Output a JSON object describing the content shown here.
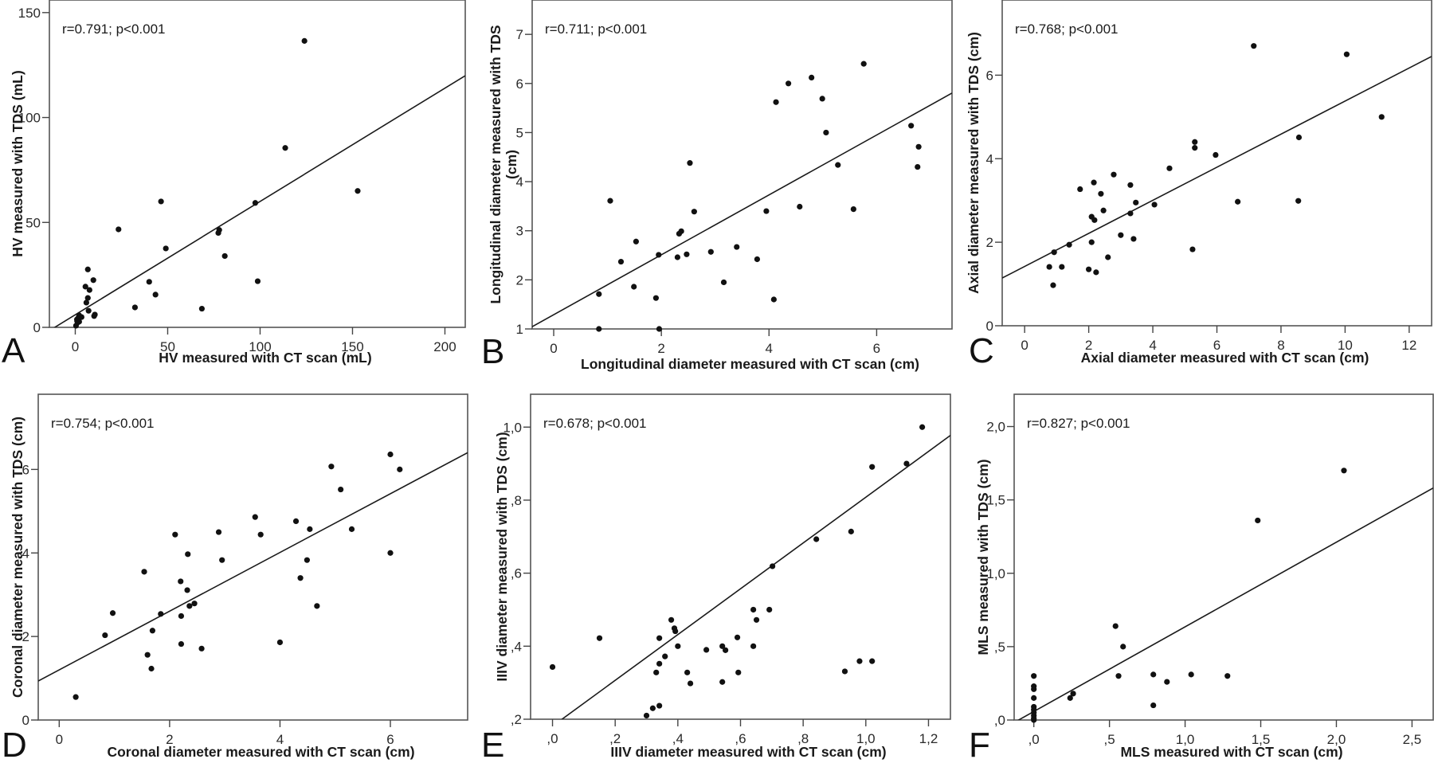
{
  "chart_data": [
    {
      "panel": "A",
      "type": "scatter",
      "stat": "r=0.791; p<0.001",
      "xlabel": "HV measured with CT scan (mL)",
      "ylabel": "HV measured with TDS (mL)",
      "xlim": [
        -14,
        211
      ],
      "ylim": [
        0,
        156
      ],
      "xticks": [
        0,
        50,
        100,
        150,
        200
      ],
      "xtick_labels": [
        "0",
        "50",
        "100",
        "150",
        "200"
      ],
      "yticks": [
        0,
        50,
        100,
        150
      ],
      "ytick_labels": [
        "0",
        "50",
        "100",
        "150"
      ],
      "fit": {
        "slope": 0.54,
        "intercept": 6.0
      },
      "points": [
        [
          124,
          136.5
        ],
        [
          113.6,
          85.5
        ],
        [
          152.8,
          65
        ],
        [
          97.4,
          59.3
        ],
        [
          46.4,
          60
        ],
        [
          98.7,
          22
        ],
        [
          23.4,
          46.7
        ],
        [
          49,
          37.6
        ],
        [
          77.9,
          46.4
        ],
        [
          77.4,
          45
        ],
        [
          80.9,
          34
        ],
        [
          40,
          21.7
        ],
        [
          43.4,
          15.6
        ],
        [
          32.3,
          9.5
        ],
        [
          68.5,
          8.9
        ],
        [
          6.8,
          27.6
        ],
        [
          9.8,
          22.5
        ],
        [
          5.5,
          19.4
        ],
        [
          7.7,
          17.8
        ],
        [
          6.8,
          14
        ],
        [
          6,
          11.8
        ],
        [
          7.2,
          7.9
        ],
        [
          10.6,
          6.1
        ],
        [
          10.2,
          5.4
        ],
        [
          2.1,
          5.7
        ],
        [
          3.4,
          4.9
        ],
        [
          1.7,
          4.6
        ],
        [
          0.9,
          3.8
        ],
        [
          1.3,
          2.3
        ],
        [
          2.1,
          2.7
        ],
        [
          0.4,
          0.8
        ],
        [
          1,
          3
        ]
      ]
    },
    {
      "panel": "B",
      "type": "scatter",
      "stat": "r=0.711; p<0.001",
      "xlabel": "Longitudinal diameter measured with CT scan (cm)",
      "ylabel": "Longitudinal diameter measured with TDS\n(cm)",
      "ylabel_lines": [
        "Longitudinal diameter measured with TDS",
        "(cm)"
      ],
      "xlim": [
        -0.4,
        7.4
      ],
      "ylim": [
        1,
        7.7
      ],
      "xticks": [
        0,
        2,
        4,
        6
      ],
      "xtick_labels": [
        "0",
        "2",
        "4",
        "6"
      ],
      "yticks": [
        1,
        2,
        3,
        4,
        5,
        6,
        7
      ],
      "ytick_labels": [
        "1",
        "2",
        "3",
        "4",
        "5",
        "6",
        "7"
      ],
      "fit": {
        "slope": 0.61,
        "intercept": 1.29
      },
      "points": [
        [
          1.05,
          3.61
        ],
        [
          0.84,
          1.71
        ],
        [
          0.84,
          1.0
        ],
        [
          1.25,
          2.37
        ],
        [
          1.53,
          2.78
        ],
        [
          1.49,
          1.86
        ],
        [
          1.9,
          1.63
        ],
        [
          1.95,
          2.51
        ],
        [
          1.96,
          1.0
        ],
        [
          2.3,
          2.46
        ],
        [
          2.33,
          2.94
        ],
        [
          2.37,
          2.99
        ],
        [
          2.47,
          2.52
        ],
        [
          2.53,
          4.38
        ],
        [
          2.61,
          3.39
        ],
        [
          2.92,
          2.57
        ],
        [
          3.16,
          1.95
        ],
        [
          3.4,
          2.67
        ],
        [
          3.78,
          2.42
        ],
        [
          3.95,
          3.4
        ],
        [
          4.09,
          1.6
        ],
        [
          4.13,
          5.62
        ],
        [
          4.36,
          6.0
        ],
        [
          4.57,
          3.49
        ],
        [
          4.79,
          6.12
        ],
        [
          4.99,
          5.69
        ],
        [
          5.06,
          5.0
        ],
        [
          5.28,
          4.34
        ],
        [
          5.57,
          3.44
        ],
        [
          5.76,
          6.4
        ],
        [
          6.64,
          5.14
        ],
        [
          6.78,
          4.71
        ],
        [
          6.76,
          4.3
        ]
      ]
    },
    {
      "panel": "C",
      "type": "scatter",
      "stat": "r=0.768; p<0.001",
      "xlabel": "Axial diameter measured with CT scan (cm)",
      "ylabel": "Axial diameter measured with TDS (cm)",
      "xlim": [
        -0.7,
        12.7
      ],
      "ylim": [
        0,
        7.8
      ],
      "xticks": [
        0,
        2,
        4,
        6,
        8,
        10,
        12
      ],
      "xtick_labels": [
        "0",
        "2",
        "4",
        "6",
        "8",
        "10",
        "12"
      ],
      "yticks": [
        0,
        2,
        4,
        6
      ],
      "ytick_labels": [
        "0",
        "2",
        "4",
        "6"
      ],
      "fit": {
        "slope": 0.396,
        "intercept": 1.42
      },
      "points": [
        [
          0.89,
          0.97
        ],
        [
          0.77,
          1.41
        ],
        [
          0.92,
          1.76
        ],
        [
          1.16,
          1.41
        ],
        [
          1.39,
          1.94
        ],
        [
          1.73,
          3.27
        ],
        [
          2.0,
          1.35
        ],
        [
          2.09,
          2.0
        ],
        [
          2.09,
          2.61
        ],
        [
          2.18,
          2.53
        ],
        [
          2.16,
          3.43
        ],
        [
          2.23,
          1.28
        ],
        [
          2.38,
          3.16
        ],
        [
          2.46,
          2.76
        ],
        [
          2.6,
          1.64
        ],
        [
          2.78,
          3.62
        ],
        [
          3.0,
          2.17
        ],
        [
          3.3,
          3.37
        ],
        [
          3.3,
          2.69
        ],
        [
          3.4,
          2.08
        ],
        [
          3.47,
          2.95
        ],
        [
          4.05,
          2.9
        ],
        [
          4.52,
          3.77
        ],
        [
          5.24,
          1.83
        ],
        [
          5.31,
          4.4
        ],
        [
          5.31,
          4.26
        ],
        [
          5.96,
          4.09
        ],
        [
          6.65,
          2.97
        ],
        [
          7.15,
          6.7
        ],
        [
          10.05,
          6.5
        ],
        [
          11.14,
          5.0
        ],
        [
          8.56,
          4.51
        ],
        [
          8.54,
          2.99
        ]
      ]
    },
    {
      "panel": "D",
      "type": "scatter",
      "stat": "r=0.754; p<0.001",
      "xlabel": "Coronal diameter measured with CT scan (cm)",
      "ylabel": "Coronal diameter measured with TDS (cm)",
      "xlim": [
        -0.38,
        7.4
      ],
      "ylim": [
        0,
        7.8
      ],
      "xticks": [
        0,
        2,
        4,
        6
      ],
      "xtick_labels": [
        "0",
        "2",
        "4",
        "6"
      ],
      "yticks": [
        0,
        2,
        4,
        6
      ],
      "ytick_labels": [
        "0",
        "2",
        "4",
        "6"
      ],
      "fit": {
        "slope": 0.703,
        "intercept": 1.2
      },
      "points": [
        [
          6.0,
          6.36
        ],
        [
          6.17,
          6.0
        ],
        [
          4.93,
          6.07
        ],
        [
          5.1,
          5.52
        ],
        [
          5.3,
          4.57
        ],
        [
          6.0,
          4.0
        ],
        [
          4.54,
          4.57
        ],
        [
          4.29,
          4.76
        ],
        [
          4.49,
          3.83
        ],
        [
          4.37,
          3.4
        ],
        [
          4.67,
          2.73
        ],
        [
          4.0,
          1.86
        ],
        [
          3.55,
          4.86
        ],
        [
          3.65,
          4.44
        ],
        [
          2.89,
          4.5
        ],
        [
          2.95,
          3.83
        ],
        [
          2.1,
          4.44
        ],
        [
          2.33,
          3.97
        ],
        [
          2.2,
          3.32
        ],
        [
          2.32,
          3.11
        ],
        [
          2.36,
          2.73
        ],
        [
          2.45,
          2.79
        ],
        [
          2.21,
          2.49
        ],
        [
          2.21,
          1.82
        ],
        [
          2.58,
          1.71
        ],
        [
          1.54,
          3.55
        ],
        [
          1.84,
          2.54
        ],
        [
          1.69,
          2.14
        ],
        [
          1.6,
          1.56
        ],
        [
          1.67,
          1.23
        ],
        [
          0.97,
          2.56
        ],
        [
          0.83,
          2.03
        ],
        [
          0.3,
          0.55
        ]
      ]
    },
    {
      "panel": "E",
      "type": "scatter",
      "stat": "r=0.678; p<0.001",
      "xlabel": "IIIV diameter measured with CT scan (cm)",
      "ylabel": "IIIV diameter measured with TDS (cm)",
      "xlim": [
        -0.07,
        1.27
      ],
      "ylim": [
        0.2,
        1.09
      ],
      "xticks": [
        0,
        0.2,
        0.4,
        0.6,
        0.8,
        1.0,
        1.2
      ],
      "xtick_labels": [
        ",0",
        ",2",
        ",4",
        ",6",
        ",8",
        "1,0",
        "1,2"
      ],
      "yticks": [
        0.2,
        0.4,
        0.6,
        0.8,
        1.0
      ],
      "ytick_labels": [
        ",2",
        ",4",
        ",6",
        ",8",
        "1,0"
      ],
      "fit": {
        "slope": 0.627,
        "intercept": 0.181
      },
      "points": [
        [
          0.842,
          0.693
        ],
        [
          0.702,
          0.619
        ],
        [
          0.641,
          0.5
        ],
        [
          0.692,
          0.5
        ],
        [
          0.651,
          0.472
        ],
        [
          0.59,
          0.424
        ],
        [
          0.641,
          0.4
        ],
        [
          0.542,
          0.4
        ],
        [
          0.552,
          0.389
        ],
        [
          0.491,
          0.39
        ],
        [
          0.4,
          0.4
        ],
        [
          0.389,
          0.449
        ],
        [
          0.392,
          0.441
        ],
        [
          0.379,
          0.472
        ],
        [
          0.341,
          0.422
        ],
        [
          0.359,
          0.372
        ],
        [
          0.341,
          0.352
        ],
        [
          0.15,
          0.422
        ],
        [
          0.0,
          0.343
        ],
        [
          0.331,
          0.328
        ],
        [
          0.43,
          0.328
        ],
        [
          0.44,
          0.298
        ],
        [
          0.542,
          0.302
        ],
        [
          0.593,
          0.328
        ],
        [
          0.341,
          0.237
        ],
        [
          0.32,
          0.23
        ],
        [
          0.3,
          0.21
        ],
        [
          1.18,
          1.0
        ],
        [
          1.13,
          0.9
        ],
        [
          1.02,
          0.891
        ],
        [
          0.953,
          0.714
        ],
        [
          0.933,
          0.331
        ],
        [
          0.98,
          0.359
        ],
        [
          1.02,
          0.359
        ]
      ]
    },
    {
      "panel": "F",
      "type": "scatter",
      "stat": "r=0.827; p<0.001",
      "xlabel": "MLS measured with CT scan (cm)",
      "ylabel": "MLS measured with TDS (cm)",
      "xlim": [
        -0.13,
        2.64
      ],
      "ylim": [
        0,
        2.22
      ],
      "xticks": [
        0,
        0.5,
        1.0,
        1.5,
        2.0,
        2.5
      ],
      "xtick_labels": [
        ",0",
        ",5",
        "1,0",
        "1,5",
        "2,0",
        "2,5"
      ],
      "yticks": [
        0,
        0.5,
        1.0,
        1.5,
        2.0
      ],
      "ytick_labels": [
        ",0",
        ",5",
        "1,0",
        "1,5",
        "2,0"
      ],
      "fit": {
        "slope": 0.577,
        "intercept": 0.058
      },
      "points": [
        [
          2.05,
          1.7
        ],
        [
          1.48,
          1.36
        ],
        [
          0.54,
          0.64
        ],
        [
          0.59,
          0.5
        ],
        [
          0.56,
          0.3
        ],
        [
          0.79,
          0.31
        ],
        [
          0.88,
          0.26
        ],
        [
          0.79,
          0.1
        ],
        [
          1.04,
          0.31
        ],
        [
          1.28,
          0.3
        ],
        [
          0.24,
          0.15
        ],
        [
          0.26,
          0.18
        ],
        [
          0.0,
          0.3
        ],
        [
          0.0,
          0.23
        ],
        [
          0.0,
          0.21
        ],
        [
          0.0,
          0.15
        ],
        [
          0.0,
          0.09
        ],
        [
          0.0,
          0.07
        ],
        [
          0.0,
          0.05
        ],
        [
          0.0,
          0.03
        ],
        [
          0.0,
          0.01
        ],
        [
          0.0,
          0.0
        ]
      ]
    }
  ]
}
